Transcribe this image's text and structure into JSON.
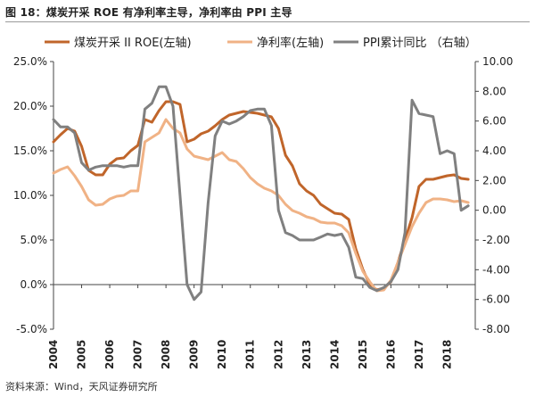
{
  "title": "图 18：煤炭开采 ROE 有净利率主导，净利率由 PPI 主导",
  "source": "资料来源：Wind，天风证券研究所",
  "colors": {
    "roe": "#c0652a",
    "npm": "#f0b285",
    "ppi": "#808080",
    "axis": "#444444"
  },
  "chart_data": {
    "type": "line",
    "title": "图 18：煤炭开采 ROE 有净利率主导，净利率由 PPI 主导",
    "categories": [
      "2004",
      "2005",
      "2006",
      "2007",
      "2008",
      "2009",
      "2010",
      "2011",
      "2012",
      "2013",
      "2014",
      "2015",
      "2016",
      "2017",
      "2018"
    ],
    "left_axis": {
      "ylim": [
        -5,
        25
      ],
      "ticks": [
        "25.0%",
        "20.0%",
        "15.0%",
        "10.0%",
        "5.0%",
        "0.0%",
        "-5.0%"
      ]
    },
    "right_axis": {
      "ylim": [
        -8,
        10
      ],
      "ticks": [
        "10.00",
        "8.00",
        "6.00",
        "4.00",
        "2.00",
        "0.00",
        "-2.00",
        "-4.00",
        "-6.00",
        "-8.00"
      ]
    },
    "legend_position": "top",
    "series": [
      {
        "name": "煤炭开采 II ROE(左轴)",
        "axis": "left",
        "color_key": "roe",
        "x": [
          2004.0,
          2004.25,
          2004.5,
          2004.75,
          2005.0,
          2005.25,
          2005.5,
          2005.75,
          2006.0,
          2006.25,
          2006.5,
          2006.75,
          2007.0,
          2007.25,
          2007.5,
          2007.75,
          2008.0,
          2008.25,
          2008.5,
          2008.75,
          2009.0,
          2009.25,
          2009.5,
          2009.75,
          2010.0,
          2010.25,
          2010.5,
          2010.75,
          2011.0,
          2011.25,
          2011.5,
          2011.75,
          2012.0,
          2012.25,
          2012.5,
          2012.75,
          2013.0,
          2013.25,
          2013.5,
          2013.75,
          2014.0,
          2014.25,
          2014.5,
          2014.75,
          2015.0,
          2015.25,
          2015.5,
          2015.75,
          2016.0,
          2016.25,
          2016.5,
          2016.75,
          2017.0,
          2017.25,
          2017.5,
          2017.75,
          2018.0,
          2018.25,
          2018.5,
          2018.75
        ],
        "y": [
          16.0,
          16.8,
          17.5,
          17.2,
          15.5,
          12.8,
          12.3,
          12.3,
          13.5,
          14.1,
          14.2,
          15.0,
          15.6,
          18.5,
          18.2,
          19.5,
          20.5,
          20.5,
          20.2,
          16.0,
          16.3,
          16.9,
          17.2,
          17.8,
          18.5,
          19.0,
          19.2,
          19.4,
          19.3,
          19.2,
          19.0,
          18.8,
          17.5,
          14.5,
          13.3,
          11.3,
          10.5,
          10.0,
          9.0,
          8.5,
          8.0,
          7.9,
          7.3,
          4.0,
          1.7,
          0.0,
          -0.6,
          -0.4,
          0.3,
          2.5,
          5.0,
          7.5,
          11.0,
          11.8,
          11.8,
          12.0,
          12.2,
          12.3,
          11.9,
          11.8
        ]
      },
      {
        "name": "净利率(左轴)",
        "axis": "left",
        "color_key": "npm",
        "x": [
          2004.0,
          2004.25,
          2004.5,
          2004.75,
          2005.0,
          2005.25,
          2005.5,
          2005.75,
          2006.0,
          2006.25,
          2006.5,
          2006.75,
          2007.0,
          2007.25,
          2007.5,
          2007.75,
          2008.0,
          2008.25,
          2008.5,
          2008.75,
          2009.0,
          2009.25,
          2009.5,
          2009.75,
          2010.0,
          2010.25,
          2010.5,
          2010.75,
          2011.0,
          2011.25,
          2011.5,
          2011.75,
          2012.0,
          2012.25,
          2012.5,
          2012.75,
          2013.0,
          2013.25,
          2013.5,
          2013.75,
          2014.0,
          2014.25,
          2014.5,
          2014.75,
          2015.0,
          2015.25,
          2015.5,
          2015.75,
          2016.0,
          2016.25,
          2016.5,
          2016.75,
          2017.0,
          2017.25,
          2017.5,
          2017.75,
          2018.0,
          2018.25,
          2018.5,
          2018.75
        ],
        "y": [
          12.5,
          12.9,
          13.2,
          12.2,
          11.0,
          9.5,
          8.9,
          9.0,
          9.6,
          9.9,
          10.0,
          10.5,
          10.5,
          16.0,
          16.5,
          17.0,
          18.5,
          17.5,
          17.0,
          15.2,
          14.4,
          14.2,
          14.0,
          14.4,
          14.8,
          14.0,
          13.8,
          13.0,
          12.0,
          11.3,
          10.8,
          10.5,
          10.0,
          9.0,
          8.3,
          8.0,
          7.6,
          7.4,
          7.0,
          6.9,
          6.9,
          6.6,
          5.8,
          3.5,
          1.5,
          0.3,
          -0.7,
          -0.6,
          0.5,
          2.5,
          4.5,
          6.5,
          8.0,
          9.2,
          9.6,
          9.6,
          9.5,
          9.3,
          9.4,
          9.2
        ]
      },
      {
        "name": "PPI累计同比 （右轴）",
        "axis": "right",
        "color_key": "ppi",
        "x": [
          2004.0,
          2004.25,
          2004.5,
          2004.75,
          2005.0,
          2005.25,
          2005.5,
          2005.75,
          2006.0,
          2006.25,
          2006.5,
          2006.75,
          2007.0,
          2007.25,
          2007.5,
          2007.75,
          2008.0,
          2008.25,
          2008.5,
          2008.75,
          2009.0,
          2009.25,
          2009.5,
          2009.75,
          2010.0,
          2010.25,
          2010.5,
          2010.75,
          2011.0,
          2011.25,
          2011.5,
          2011.75,
          2012.0,
          2012.25,
          2012.5,
          2012.75,
          2013.0,
          2013.25,
          2013.5,
          2013.75,
          2014.0,
          2014.25,
          2014.5,
          2014.75,
          2015.0,
          2015.25,
          2015.5,
          2015.75,
          2016.0,
          2016.25,
          2016.5,
          2016.75,
          2017.0,
          2017.25,
          2017.5,
          2017.75,
          2018.0,
          2018.25,
          2018.5,
          2018.75
        ],
        "y": [
          6.1,
          5.6,
          5.6,
          5.2,
          3.2,
          2.7,
          2.9,
          3.0,
          3.0,
          3.0,
          2.9,
          3.0,
          3.0,
          6.8,
          7.2,
          8.3,
          8.3,
          7.0,
          1.0,
          -5.0,
          -6.0,
          -5.5,
          0.5,
          5.0,
          6.0,
          5.8,
          6.0,
          6.3,
          6.7,
          6.8,
          6.8,
          5.7,
          0.0,
          -1.5,
          -1.7,
          -2.0,
          -2.0,
          -2.0,
          -1.8,
          -1.6,
          -1.7,
          -1.6,
          -2.5,
          -4.5,
          -4.6,
          -5.2,
          -5.4,
          -5.2,
          -4.8,
          -4.0,
          -1.5,
          7.4,
          6.5,
          6.4,
          6.3,
          3.8,
          4.0,
          3.8,
          0.0,
          0.3
        ]
      }
    ]
  }
}
